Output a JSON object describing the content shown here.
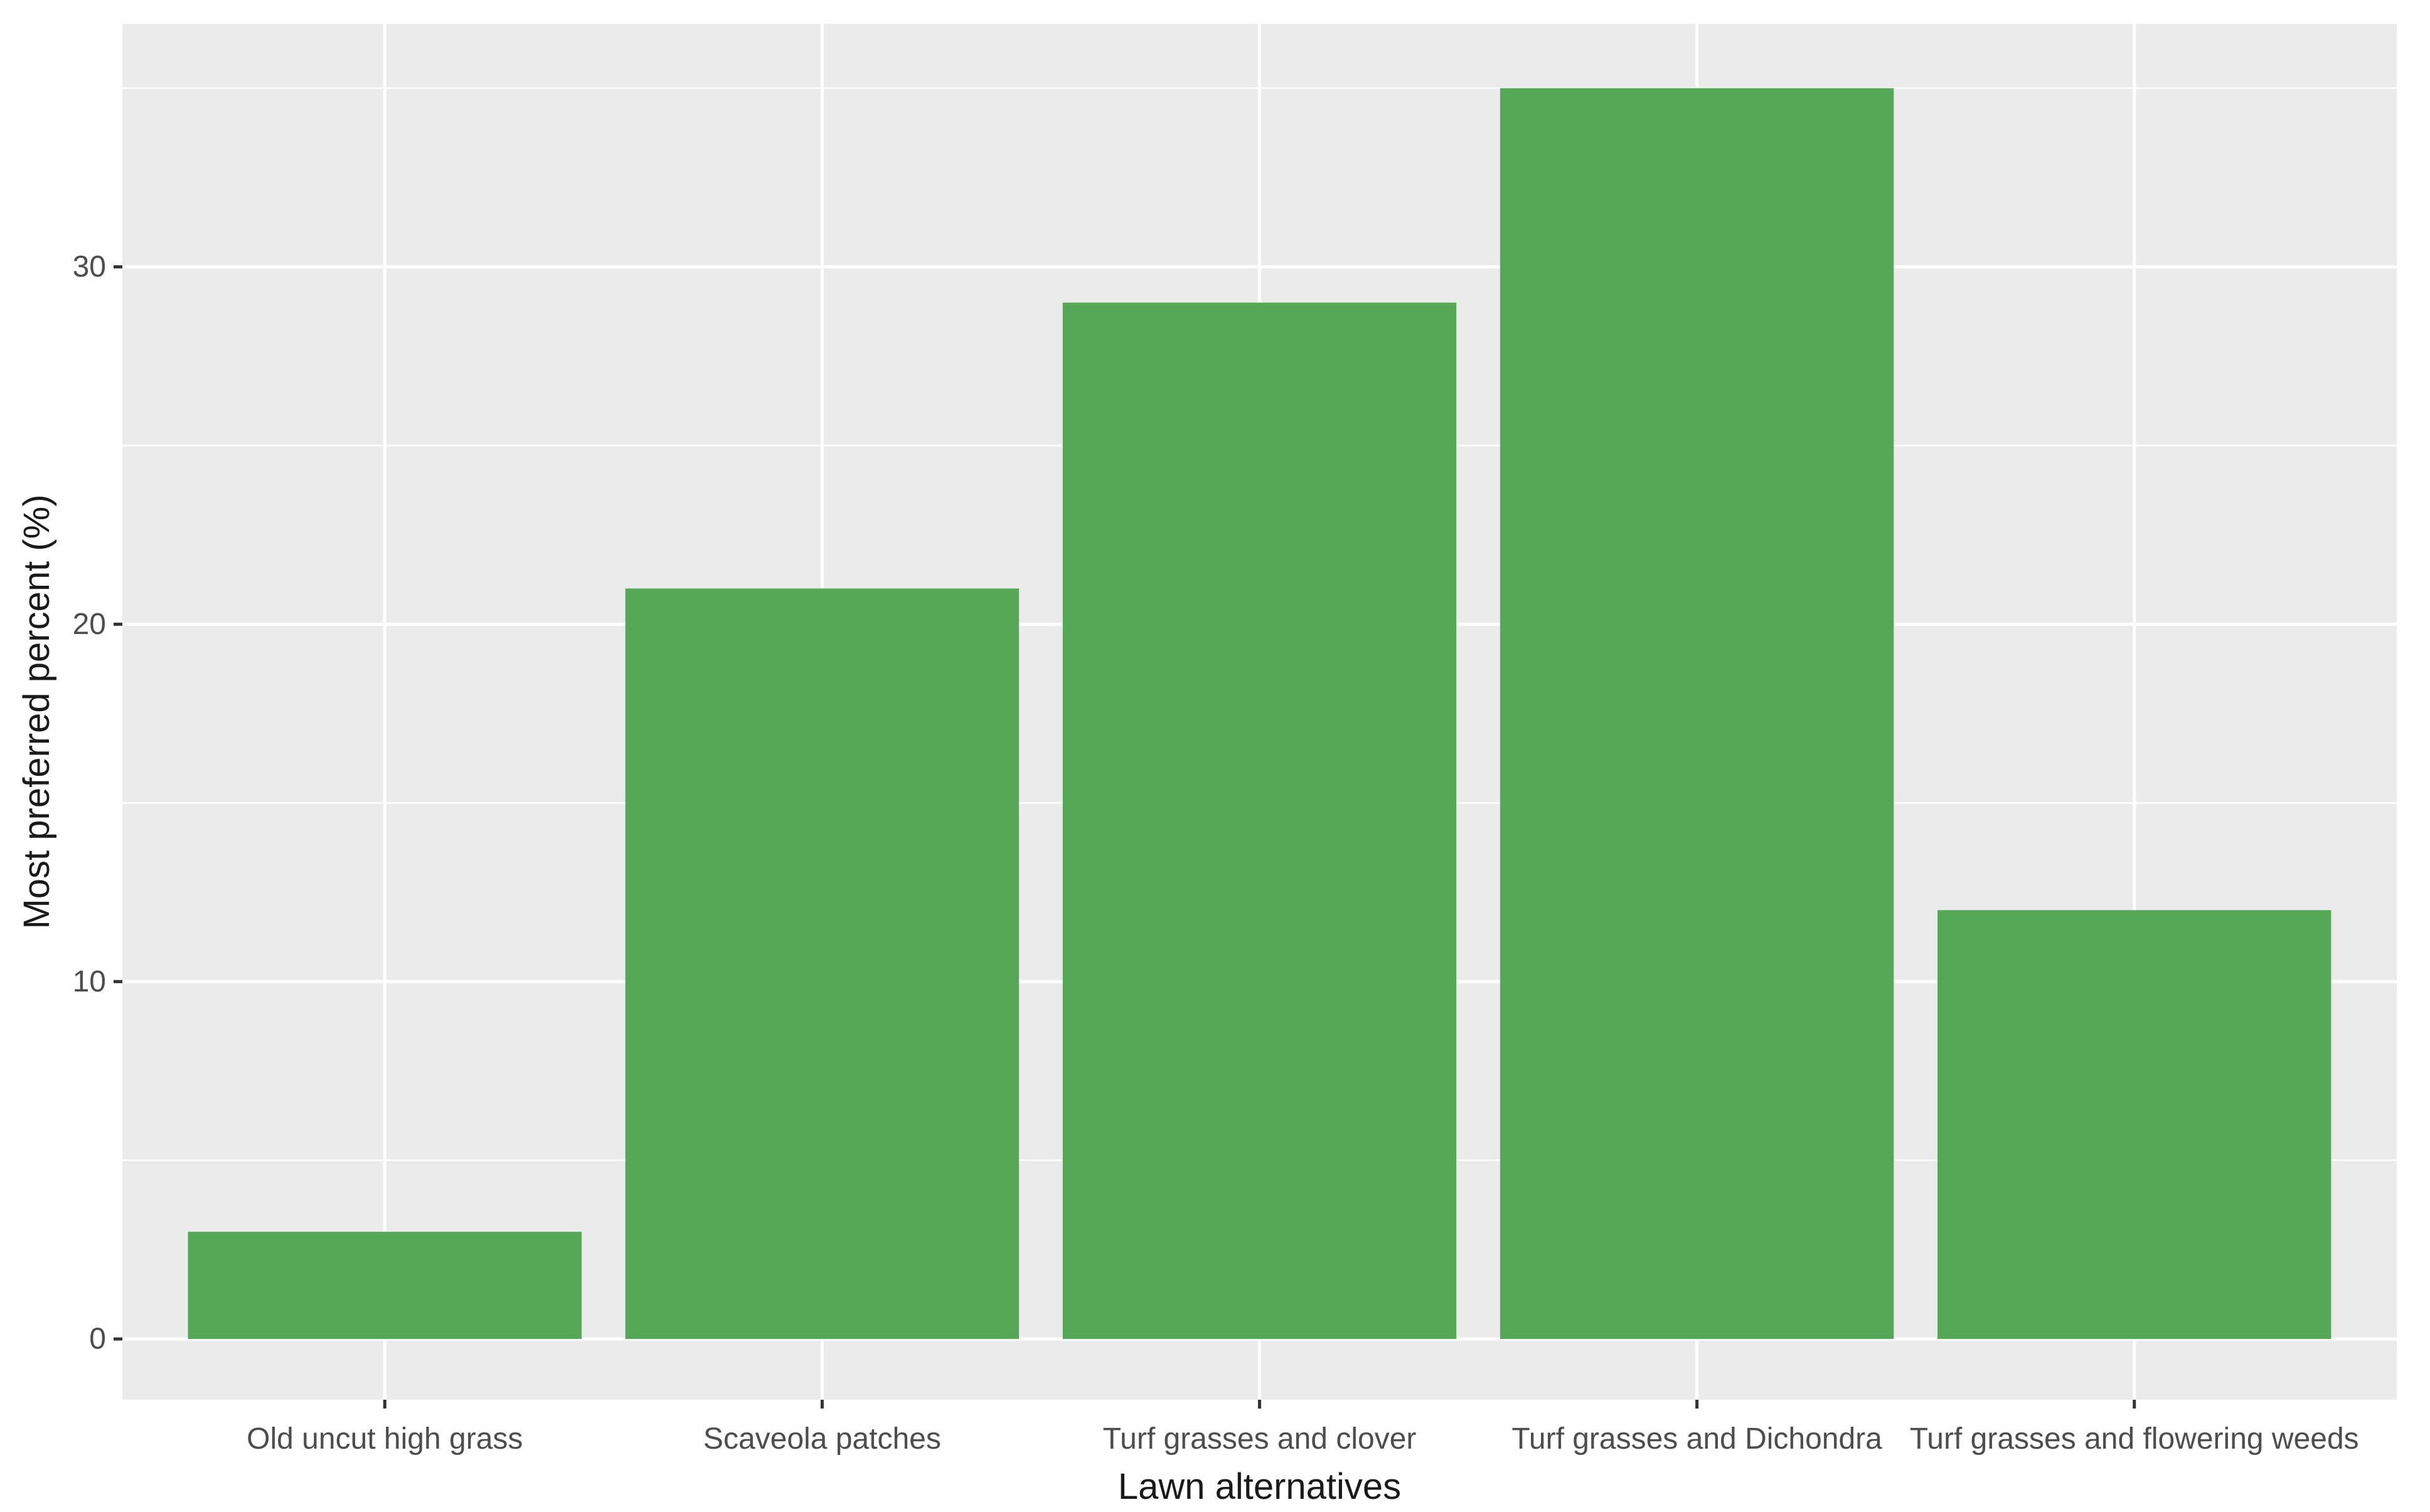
{
  "chart_data": {
    "type": "bar",
    "title": "",
    "xlabel": "Lawn alternatives",
    "ylabel": "Most preferred percent (%)",
    "categories": [
      "Old uncut high grass",
      "Scaveola patches",
      "Turf grasses and clover",
      "Turf grasses and Dichondra",
      "Turf grasses and flowering weeds"
    ],
    "values": [
      3,
      21,
      29,
      35,
      12
    ],
    "ylim": [
      -1.7,
      36.8
    ],
    "yticks": [
      0,
      10,
      20,
      30
    ],
    "grid": true,
    "legend": "none",
    "bar_color": "#55a856",
    "panel_background": "#ebebeb",
    "grid_color": "#ffffff"
  }
}
